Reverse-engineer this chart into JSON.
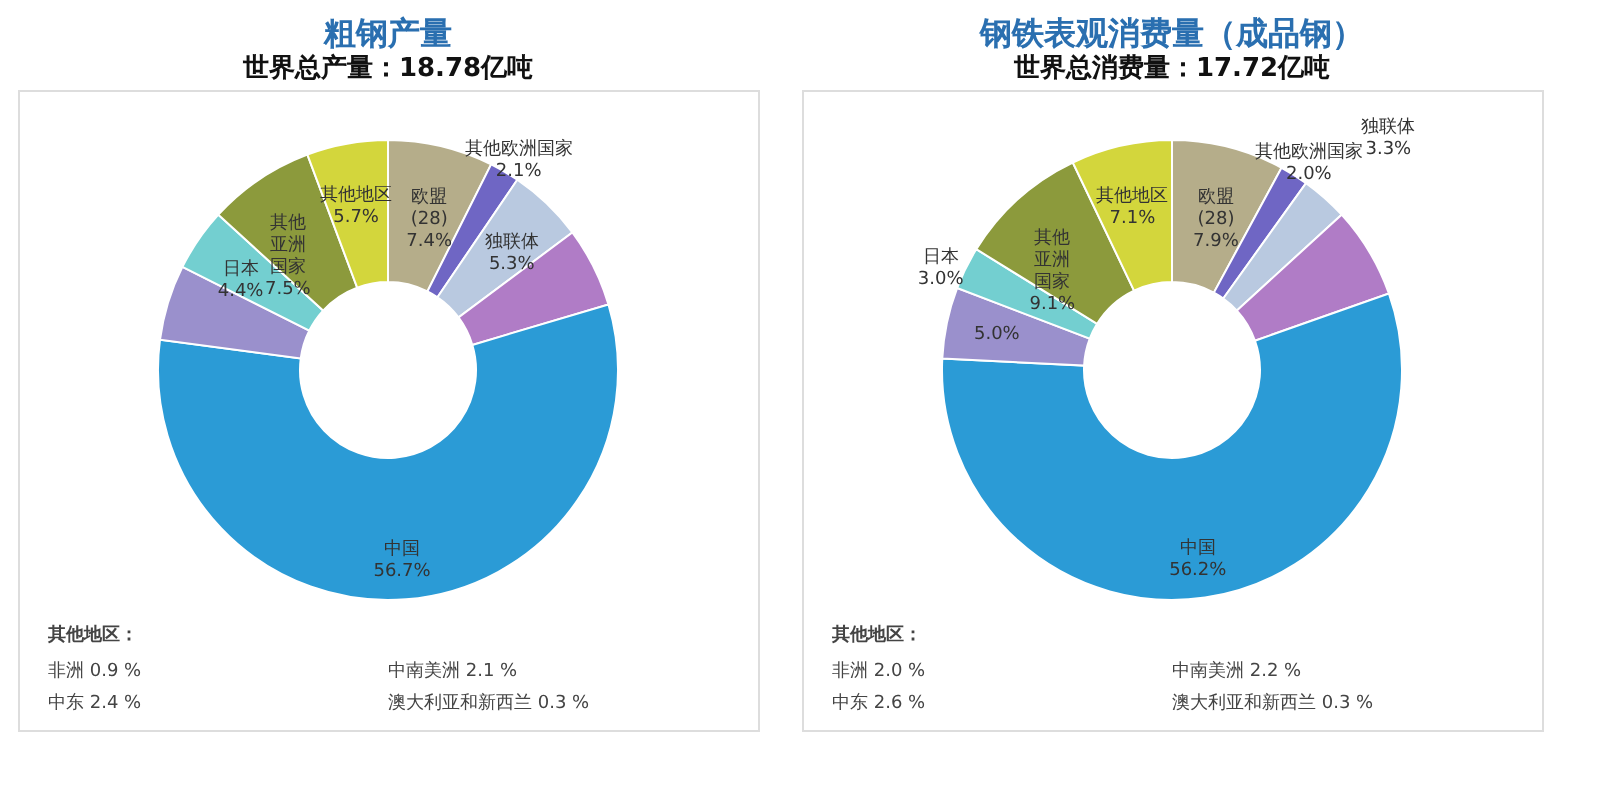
{
  "chart_data": [
    {
      "type": "donut",
      "title": "粗钢产量",
      "subtitle": "世界总产量：18.78亿吨",
      "categories": [
        "欧盟 (28)",
        "其他欧洲国家",
        "独联体",
        null,
        "中国",
        null,
        "日本",
        "其他亚洲国家",
        "其他地区"
      ],
      "values": [
        7.4,
        2.1,
        5.3,
        5.6,
        56.7,
        5.3,
        4.4,
        7.5,
        5.7
      ],
      "value_labels": [
        "7.4%",
        "2.1%",
        "5.3%",
        null,
        "56.7%",
        null,
        "4.4%",
        "7.5%",
        "5.7%"
      ],
      "colors": [
        "#b5ad8a",
        "#6f66c4",
        "#b9c9e0",
        "#b07cc6",
        "#2b9bd6",
        "#9a90cc",
        "#73cfd0",
        "#8c9a3c",
        "#d3d63c"
      ],
      "annotations": [
        "其他地区：",
        "非洲 0.9 %",
        "中东 2.4 %",
        "中南美洲 2.1 %",
        "澳大利亚和新西兰 0.3 %"
      ]
    },
    {
      "type": "donut",
      "title": "钢铁表观消费量（成品钢）",
      "subtitle": "世界总消费量：17.72亿吨",
      "categories": [
        "欧盟 (28)",
        "其他欧洲国家",
        "独联体",
        null,
        "中国",
        null,
        "日本",
        "其他亚洲国家",
        "其他地区"
      ],
      "values": [
        7.9,
        2.0,
        3.3,
        6.4,
        56.2,
        5.0,
        3.0,
        9.1,
        7.1
      ],
      "value_labels": [
        "7.9%",
        "2.0%",
        "3.3%",
        null,
        "56.2%",
        "5.0%",
        "3.0%",
        "9.1%",
        "7.1%"
      ],
      "colors": [
        "#b5ad8a",
        "#6f66c4",
        "#b9c9e0",
        "#b07cc6",
        "#2b9bd6",
        "#9a90cc",
        "#73cfd0",
        "#8c9a3c",
        "#d3d63c"
      ],
      "annotations": [
        "其他地区：",
        "非洲 2.0 %",
        "中东 2.6 %",
        "中南美洲 2.2 %",
        "澳大利亚和新西兰 0.3 %"
      ]
    }
  ]
}
